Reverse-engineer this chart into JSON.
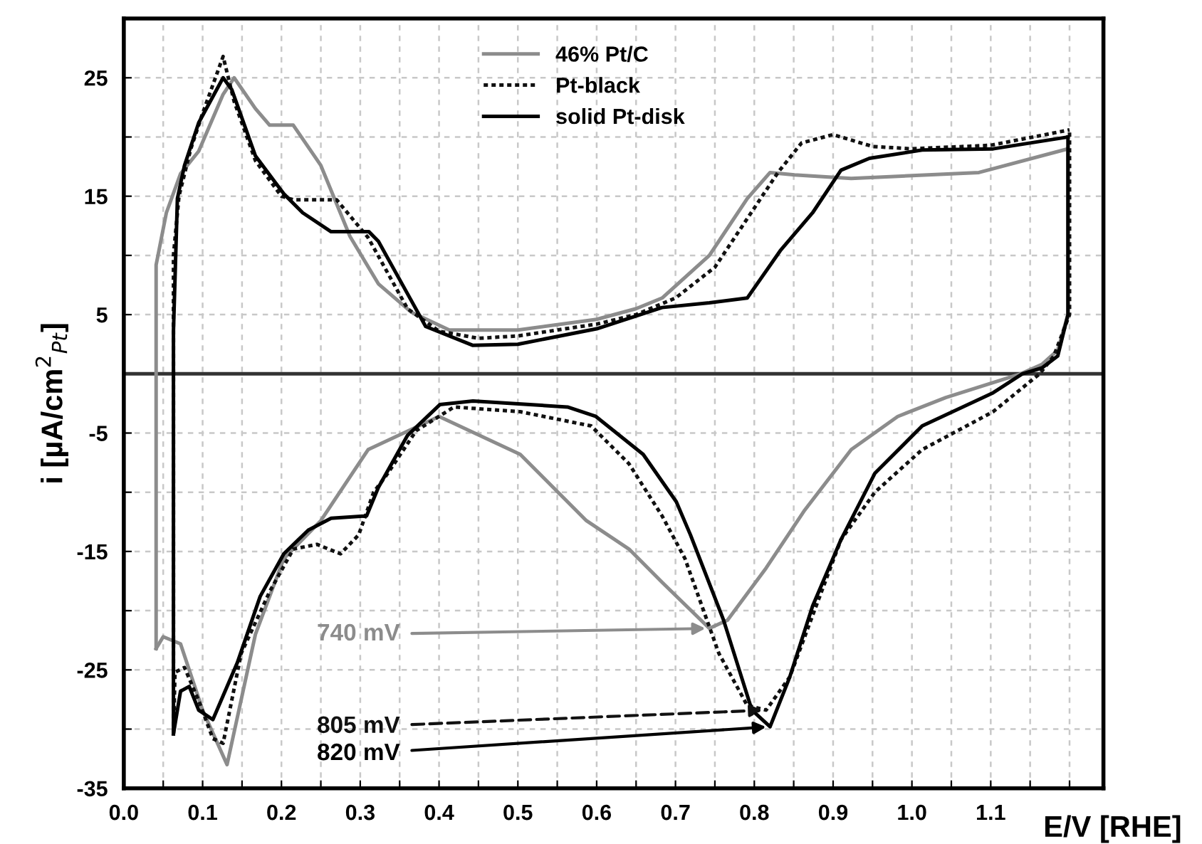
{
  "chart_data": {
    "type": "line",
    "xlabel": "E/V [RHE]",
    "ylabel": "i [µA/cm$^{2}$$_{Pt}$]",
    "xlim": [
      0,
      1.243
    ],
    "ylim": [
      -35,
      30
    ],
    "xticks": [
      {
        "value": 0,
        "label": "0.0"
      },
      {
        "value": 0.05,
        "label": null
      },
      0.1,
      {
        "value": 0.15,
        "label": null
      },
      0.2,
      {
        "value": 0.25,
        "label": null
      },
      0.3,
      {
        "value": 0.35,
        "label": null
      },
      0.4,
      {
        "value": 0.45,
        "label": null
      },
      0.5,
      {
        "value": 0.55,
        "label": null
      },
      0.6,
      {
        "value": 0.65,
        "label": null
      },
      0.7,
      {
        "value": 0.75,
        "label": null
      },
      0.8,
      {
        "value": 0.85,
        "label": null
      },
      0.9,
      {
        "value": 0.95,
        "label": null
      },
      {
        "value": 1,
        "label": "1.0"
      },
      {
        "value": 1.05,
        "label": null
      },
      1.1,
      {
        "value": 1.15,
        "label": null
      },
      {
        "value": 1.2,
        "label": null
      }
    ],
    "yticks": [
      -35,
      {
        "value": -30,
        "label": null
      },
      -25,
      {
        "value": -20,
        "label": null
      },
      -15,
      {
        "value": -10,
        "label": null
      },
      -5,
      {
        "value": 0,
        "label": null
      },
      5,
      {
        "value": 10,
        "label": null
      },
      15,
      {
        "value": 20,
        "label": null
      },
      25
    ],
    "grid": true,
    "legend": "top",
    "marker": "none",
    "ref_lines": [
      {
        "axis": "y",
        "value": 0,
        "color": "#333333",
        "line_style": "solid"
      }
    ],
    "series": [
      {
        "name": "46% Pt/C",
        "color": "#8c8c8c",
        "line_style": "solid",
        "x": [
          0.041,
          0.041,
          0.054,
          0.072,
          0.095,
          0.126,
          0.14,
          0.167,
          0.185,
          0.215,
          0.25,
          0.287,
          0.323,
          0.365,
          0.413,
          0.5,
          0.6,
          0.65,
          0.683,
          0.743,
          0.791,
          0.82,
          0.851,
          0.923,
          1.085,
          1.198
        ],
        "values": [
          -23.2,
          9.2,
          13.6,
          16.9,
          18.8,
          23.6,
          25,
          22.4,
          21,
          21,
          17.6,
          11.6,
          7.6,
          5.2,
          3.7,
          3.7,
          4.6,
          5.5,
          6.4,
          10,
          14.8,
          17,
          16.8,
          16.5,
          17,
          19
        ]
      },
      {
        "color": "#8c8c8c",
        "line_style": "solid",
        "x": [
          0.041,
          0.05,
          0.072,
          0.1,
          0.131,
          0.167,
          0.203,
          0.25,
          0.31,
          0.4,
          0.503,
          0.587,
          0.641,
          0.683,
          0.743,
          0.766,
          0.815,
          0.863,
          0.923,
          0.982,
          1.043,
          1.138,
          1.165,
          1.185,
          1.198,
          1.198
        ],
        "values": [
          -23.2,
          -22.2,
          -22.8,
          -28.4,
          -33,
          -22,
          -15.6,
          -12.4,
          -6.4,
          -3.6,
          -6.8,
          -12.4,
          -14.8,
          -17.6,
          -21.5,
          -20.8,
          -16.4,
          -11.6,
          -6.4,
          -3.6,
          -2,
          0,
          0.8,
          2,
          5,
          19
        ]
      },
      {
        "name": "Pt-black",
        "color": "#111111",
        "line_style": "dotted",
        "x": [
          0.063,
          0.063,
          0.07,
          0.085,
          0.1,
          0.126,
          0.14,
          0.167,
          0.2,
          0.215,
          0.27,
          0.285,
          0.31,
          0.335,
          0.36,
          0.4,
          0.45,
          0.5,
          0.6,
          0.65,
          0.7,
          0.75,
          0.79,
          0.83,
          0.86,
          0.9,
          0.95,
          1.0,
          1.1,
          1.2
        ],
        "values": [
          -30.4,
          10,
          15,
          19,
          22,
          26.8,
          23,
          18,
          15,
          14.7,
          14.7,
          13.5,
          11.5,
          8.5,
          5.5,
          3.6,
          3,
          3.2,
          4.2,
          5,
          6.4,
          9,
          13,
          17,
          19.5,
          20.2,
          19.2,
          19,
          19.3,
          20.6
        ]
      },
      {
        "color": "#111111",
        "line_style": "dotted",
        "x": [
          0.063,
          0.065,
          0.077,
          0.095,
          0.113,
          0.126,
          0.149,
          0.185,
          0.215,
          0.245,
          0.275,
          0.298,
          0.317,
          0.335,
          0.371,
          0.419,
          0.503,
          0.593,
          0.641,
          0.683,
          0.712,
          0.755,
          0.791,
          0.815,
          0.845,
          0.874,
          0.91,
          0.953,
          1.013,
          1.103,
          1.162,
          1.18,
          1.2,
          1.2
        ],
        "values": [
          -30.4,
          -25.2,
          -24.8,
          -27.6,
          -30.8,
          -31.2,
          -23.6,
          -18.4,
          -14.8,
          -14.4,
          -15.2,
          -13.6,
          -10,
          -8.4,
          -4.8,
          -2.8,
          -3.2,
          -4.4,
          -7.6,
          -12,
          -15.6,
          -23.6,
          -28,
          -28.4,
          -25.6,
          -20.4,
          -14,
          -10,
          -6.4,
          -3.2,
          0,
          1.5,
          5,
          20.6
        ]
      },
      {
        "name": "solid Pt-disk",
        "color": "#000000",
        "line_style": "solid",
        "x": [
          0.063,
          0.063,
          0.068,
          0.077,
          0.095,
          0.126,
          0.137,
          0.167,
          0.203,
          0.227,
          0.263,
          0.311,
          0.323,
          0.353,
          0.383,
          0.443,
          0.5,
          0.6,
          0.683,
          0.743,
          0.791,
          0.833,
          0.874,
          0.91,
          0.946,
          1.013,
          1.103,
          1.198
        ],
        "values": [
          -30.4,
          3.6,
          14.8,
          17.6,
          21.2,
          25,
          24,
          18.4,
          15.2,
          13.6,
          12,
          12,
          11.2,
          7.6,
          4,
          2.4,
          2.5,
          3.8,
          5.6,
          6,
          6.4,
          10.4,
          13.6,
          17.2,
          18.2,
          18.9,
          19,
          20
        ]
      },
      {
        "color": "#000000",
        "line_style": "solid",
        "x": [
          0.063,
          0.072,
          0.083,
          0.095,
          0.113,
          0.144,
          0.173,
          0.203,
          0.234,
          0.263,
          0.308,
          0.323,
          0.36,
          0.401,
          0.443,
          0.563,
          0.599,
          0.659,
          0.701,
          0.719,
          0.761,
          0.797,
          0.82,
          0.845,
          0.874,
          0.91,
          0.953,
          1.013,
          1.103,
          1.14,
          1.165,
          1.185,
          1.198,
          1.198
        ],
        "values": [
          -30.4,
          -26.8,
          -26.4,
          -28.4,
          -29.2,
          -24.4,
          -18.8,
          -15.2,
          -13.2,
          -12.2,
          -12,
          -9.6,
          -5.2,
          -2.6,
          -2.3,
          -2.8,
          -3.6,
          -6.8,
          -10.8,
          -13.6,
          -20.8,
          -28.4,
          -29.8,
          -25.6,
          -19.6,
          -14,
          -8.4,
          -4.4,
          -1.6,
          0,
          0.5,
          1.5,
          5,
          20
        ]
      }
    ],
    "annotations": [
      {
        "text": "740 mV",
        "x": 0.743,
        "y": -21.5
      },
      {
        "text": "805 mV",
        "x": 0.815,
        "y": -28.4
      },
      {
        "text": "820 mV",
        "x": 0.82,
        "y": -29.8
      }
    ]
  }
}
